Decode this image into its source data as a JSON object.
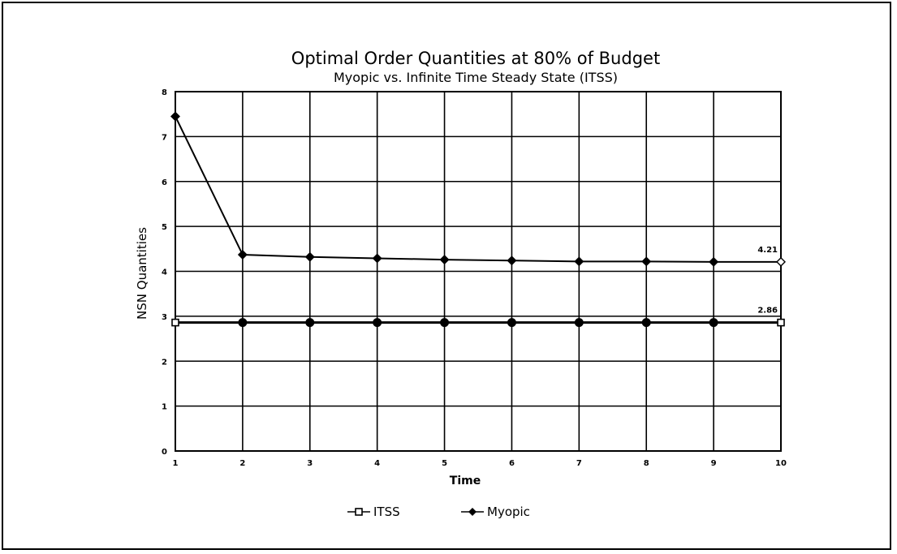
{
  "chart_data": {
    "type": "line",
    "title": "Optimal Order Quantities at 80% of Budget",
    "subtitle": "Myopic vs. Infinite Time Steady State (ITSS)",
    "xlabel": "Time",
    "ylabel": "NSN Quantities",
    "x": [
      1,
      2,
      3,
      4,
      5,
      6,
      7,
      8,
      9,
      10
    ],
    "xticks": [
      "1",
      "2",
      "3",
      "4",
      "5",
      "6",
      "7",
      "8",
      "9",
      "10"
    ],
    "yticks": [
      "0",
      "1",
      "2",
      "3",
      "4",
      "5",
      "6",
      "7",
      "8"
    ],
    "xlim": [
      1,
      10
    ],
    "ylim": [
      0,
      8
    ],
    "grid": true,
    "legend_position": "bottom",
    "series": [
      {
        "name": "ITSS",
        "marker": "square",
        "color": "#000000",
        "values": [
          2.86,
          2.86,
          2.86,
          2.86,
          2.86,
          2.86,
          2.86,
          2.86,
          2.86,
          2.86
        ]
      },
      {
        "name": "Myopic",
        "marker": "diamond",
        "color": "#000000",
        "values": [
          7.45,
          4.37,
          4.32,
          4.29,
          4.26,
          4.24,
          4.22,
          4.22,
          4.21,
          4.21
        ]
      }
    ],
    "annotations": [
      {
        "text": "4.21",
        "x": 10,
        "y": 4.21
      },
      {
        "text": "2.86",
        "x": 10,
        "y": 2.86
      }
    ]
  }
}
